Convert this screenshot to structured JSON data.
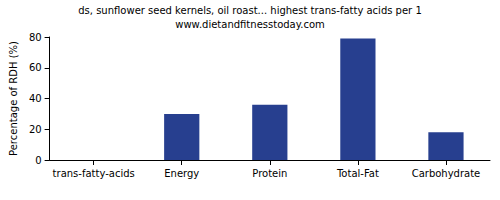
{
  "chart_data": {
    "type": "bar",
    "title": "ds, sunflower seed kernels, oil roast... highest trans-fatty acids per 1",
    "subtitle": "www.dietandfitnesstoday.com",
    "y_label": "Percentage of RDH (%)",
    "categories": [
      "trans-fatty-acids",
      "Energy",
      "Protein",
      "Total-Fat",
      "Carbohydrate"
    ],
    "values": [
      0,
      30,
      36,
      79,
      18
    ],
    "color": "#273f8f",
    "ylim": [
      0,
      80
    ],
    "yticks": [
      0,
      20,
      40,
      60,
      80
    ],
    "grid": false
  }
}
